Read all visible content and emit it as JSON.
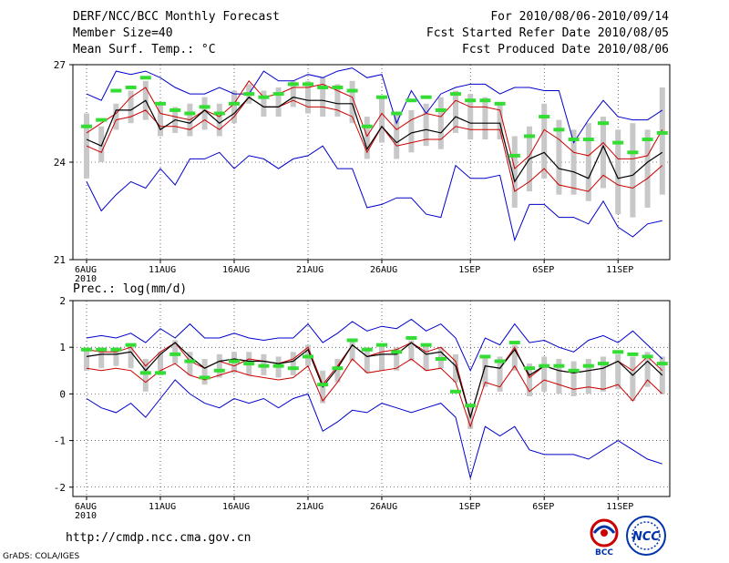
{
  "header": {
    "title": "DERF/NCC/BCC Monthly Forecast",
    "member_size": "Member Size=40",
    "variable": "Mean Surf. Temp.: °C",
    "period": "For 2010/08/06-2010/09/14",
    "started": "Fcst Started Refer Date 2010/08/05",
    "produced": "Fcst Produced Date 2010/08/06"
  },
  "footer": {
    "url": "http://cmdp.ncc.cma.gov.cn",
    "grads": "GrADS: COLA/IGES",
    "logo_bcc": "BCC",
    "logo_ncc": "NCC"
  },
  "colors": {
    "envelope": "#0000cc",
    "spread": "#cc0000",
    "mean": "#000000",
    "box": "#c8c8c8",
    "climatology": "#33dd33"
  },
  "chart_data": [
    {
      "type": "line",
      "title": "Mean Surf. Temp.: °C",
      "ylim": [
        21,
        27
      ],
      "yticks": [
        21,
        24,
        27
      ],
      "xtick_labels": [
        "6AUG",
        "11AUG",
        "16AUG",
        "21AUG",
        "26AUG",
        "1SEP",
        "6SEP",
        "11SEP"
      ],
      "xtick_sub": "2010",
      "xtick_index": [
        0,
        5,
        10,
        15,
        20,
        26,
        31,
        36
      ],
      "n_days": 40,
      "series": [
        {
          "name": "ensemble max",
          "values": [
            26.1,
            25.9,
            26.8,
            26.7,
            26.8,
            26.6,
            26.3,
            26.1,
            26.1,
            26.3,
            26.1,
            26.1,
            26.8,
            26.5,
            26.5,
            26.7,
            26.6,
            26.8,
            26.9,
            26.6,
            26.7,
            25.2,
            26.2,
            25.5,
            26.1,
            26.3,
            26.4,
            26.4,
            26.1,
            26.3,
            26.3,
            26.2,
            26.2,
            24.6,
            25.3,
            25.9,
            25.4,
            25.3,
            25.3,
            25.6
          ]
        },
        {
          "name": "ensemble upper",
          "values": [
            24.9,
            25.2,
            25.5,
            26.0,
            26.3,
            25.5,
            25.4,
            25.3,
            25.6,
            25.4,
            25.8,
            26.5,
            26.0,
            26.1,
            26.3,
            26.3,
            26.4,
            26.2,
            26.0,
            24.8,
            25.5,
            25.0,
            25.3,
            25.5,
            25.4,
            25.9,
            25.7,
            25.7,
            25.6,
            23.8,
            24.2,
            25.0,
            24.7,
            24.3,
            24.2,
            24.6,
            24.1,
            24.1,
            24.2,
            25.0
          ]
        },
        {
          "name": "ensemble mean",
          "values": [
            24.7,
            24.5,
            25.6,
            25.6,
            25.9,
            25.0,
            25.3,
            25.2,
            25.6,
            25.2,
            25.5,
            26.0,
            25.7,
            25.7,
            26.0,
            25.9,
            25.9,
            25.8,
            25.8,
            24.4,
            25.1,
            24.6,
            24.9,
            25.0,
            24.9,
            25.4,
            25.2,
            25.2,
            25.2,
            23.4,
            24.1,
            24.3,
            23.8,
            23.7,
            23.5,
            24.5,
            23.5,
            23.6,
            24.0,
            24.3
          ]
        },
        {
          "name": "ensemble lower",
          "values": [
            24.5,
            24.3,
            25.3,
            25.4,
            25.6,
            25.1,
            25.1,
            25.0,
            25.3,
            25.0,
            25.4,
            26.0,
            25.7,
            25.7,
            25.9,
            25.7,
            25.7,
            25.6,
            25.4,
            24.3,
            25.1,
            24.5,
            24.6,
            24.7,
            24.7,
            25.1,
            25.0,
            25.0,
            25.0,
            23.1,
            23.4,
            23.8,
            23.3,
            23.2,
            23.1,
            23.6,
            23.3,
            23.2,
            23.5,
            23.9
          ]
        },
        {
          "name": "ensemble min",
          "values": [
            23.4,
            22.5,
            23.0,
            23.4,
            23.2,
            23.8,
            23.3,
            24.1,
            24.1,
            24.3,
            23.8,
            24.2,
            24.1,
            23.8,
            24.1,
            24.2,
            24.5,
            23.8,
            23.8,
            22.6,
            22.7,
            22.9,
            22.9,
            22.4,
            22.3,
            23.9,
            23.5,
            23.5,
            23.6,
            21.6,
            22.7,
            22.7,
            22.3,
            22.3,
            22.1,
            22.8,
            22.0,
            21.7,
            22.1,
            22.2
          ]
        },
        {
          "name": "climatology",
          "values": [
            25.1,
            25.3,
            26.2,
            26.3,
            26.6,
            25.8,
            25.6,
            25.5,
            25.7,
            25.5,
            25.8,
            26.1,
            26.0,
            26.1,
            26.4,
            26.4,
            26.3,
            26.3,
            26.2,
            25.1,
            26.0,
            25.5,
            25.9,
            26.0,
            25.6,
            26.1,
            25.9,
            25.9,
            25.8,
            24.2,
            24.8,
            25.4,
            25.0,
            24.7,
            24.7,
            25.2,
            24.6,
            24.3,
            24.7,
            24.9
          ]
        },
        {
          "name": "box top",
          "values": [
            25.5,
            25.1,
            25.8,
            26.2,
            26.5,
            25.8,
            25.7,
            25.8,
            26.0,
            25.8,
            26.2,
            26.4,
            26.2,
            26.3,
            26.5,
            26.5,
            26.6,
            26.4,
            26.5,
            25.4,
            26.0,
            25.5,
            25.6,
            25.8,
            26.0,
            26.2,
            26.1,
            26.0,
            25.8,
            24.8,
            25.1,
            25.8,
            25.3,
            25.0,
            25.2,
            25.4,
            25.0,
            25.2,
            25.0,
            26.3
          ]
        },
        {
          "name": "box bottom",
          "values": [
            23.5,
            24.0,
            25.0,
            25.2,
            25.3,
            24.8,
            24.9,
            24.8,
            25.0,
            24.8,
            25.2,
            25.8,
            25.4,
            25.4,
            25.7,
            25.5,
            25.4,
            25.4,
            25.2,
            24.1,
            24.6,
            24.1,
            24.3,
            24.5,
            24.4,
            24.9,
            24.7,
            24.7,
            24.7,
            22.6,
            23.1,
            23.5,
            23.0,
            23.0,
            22.8,
            23.2,
            22.4,
            22.3,
            22.6,
            23.0
          ]
        }
      ]
    },
    {
      "type": "line",
      "title": "Prec.: log(mm/d)",
      "ylim": [
        -2.2,
        2.0
      ],
      "yticks": [
        -2,
        -1,
        0,
        1,
        2
      ],
      "xtick_labels": [
        "6AUG",
        "11AUG",
        "16AUG",
        "21AUG",
        "26AUG",
        "1SEP",
        "6SEP",
        "11SEP"
      ],
      "xtick_sub": "2010",
      "xtick_index": [
        0,
        5,
        10,
        15,
        20,
        26,
        31,
        36
      ],
      "n_days": 40,
      "series": [
        {
          "name": "ensemble max",
          "values": [
            1.2,
            1.25,
            1.2,
            1.3,
            1.1,
            1.4,
            1.2,
            1.5,
            1.2,
            1.2,
            1.3,
            1.2,
            1.15,
            1.2,
            1.2,
            1.5,
            1.1,
            1.3,
            1.55,
            1.35,
            1.45,
            1.4,
            1.6,
            1.35,
            1.5,
            1.2,
            0.5,
            1.2,
            1.05,
            1.5,
            1.1,
            1.15,
            1.0,
            0.9,
            1.15,
            1.25,
            1.1,
            1.35,
            1.05,
            0.75
          ]
        },
        {
          "name": "ensemble upper",
          "values": [
            0.95,
            0.9,
            0.9,
            1.0,
            0.6,
            0.9,
            1.1,
            0.7,
            0.55,
            0.7,
            0.6,
            0.75,
            0.7,
            0.65,
            0.75,
            1.0,
            0.2,
            0.6,
            1.05,
            0.8,
            0.9,
            0.95,
            1.1,
            0.9,
            1.0,
            0.7,
            -0.5,
            0.6,
            0.55,
            1.0,
            0.35,
            0.6,
            0.5,
            0.45,
            0.5,
            0.55,
            0.7,
            0.5,
            0.8,
            0.5
          ]
        },
        {
          "name": "ensemble mean",
          "values": [
            0.8,
            0.85,
            0.85,
            0.9,
            0.5,
            0.85,
            1.1,
            0.8,
            0.55,
            0.7,
            0.75,
            0.7,
            0.7,
            0.65,
            0.7,
            0.95,
            0.15,
            0.55,
            1.05,
            0.8,
            0.85,
            0.85,
            1.1,
            0.85,
            0.9,
            0.6,
            -0.5,
            0.6,
            0.55,
            0.95,
            0.4,
            0.6,
            0.5,
            0.45,
            0.5,
            0.55,
            0.7,
            0.4,
            0.7,
            0.4
          ]
        },
        {
          "name": "ensemble lower",
          "values": [
            0.55,
            0.5,
            0.55,
            0.5,
            0.25,
            0.5,
            0.65,
            0.4,
            0.3,
            0.4,
            0.5,
            0.4,
            0.35,
            0.3,
            0.35,
            0.6,
            -0.15,
            0.25,
            0.75,
            0.45,
            0.5,
            0.55,
            0.75,
            0.5,
            0.55,
            0.25,
            -0.7,
            0.25,
            0.15,
            0.6,
            0.05,
            0.3,
            0.2,
            0.1,
            0.15,
            0.1,
            0.2,
            -0.15,
            0.3,
            0.0
          ]
        },
        {
          "name": "ensemble min",
          "values": [
            -0.1,
            -0.3,
            -0.4,
            -0.2,
            -0.5,
            -0.1,
            0.3,
            0.0,
            -0.2,
            -0.3,
            -0.1,
            -0.2,
            -0.1,
            -0.3,
            -0.1,
            0.0,
            -0.8,
            -0.6,
            -0.35,
            -0.4,
            -0.2,
            -0.3,
            -0.4,
            -0.3,
            -0.2,
            -0.5,
            -1.8,
            -0.7,
            -0.9,
            -0.7,
            -1.2,
            -1.3,
            -1.3,
            -1.3,
            -1.4,
            -1.2,
            -1.0,
            -1.2,
            -1.4,
            -1.5
          ]
        },
        {
          "name": "climatology",
          "values": [
            0.95,
            0.95,
            0.95,
            1.05,
            0.45,
            0.45,
            0.85,
            0.7,
            0.35,
            0.5,
            0.7,
            0.65,
            0.6,
            0.6,
            0.55,
            0.8,
            0.2,
            0.55,
            1.15,
            0.95,
            1.05,
            0.9,
            1.2,
            1.05,
            0.75,
            0.05,
            -0.25,
            0.8,
            0.7,
            1.1,
            0.55,
            0.6,
            0.6,
            0.5,
            0.6,
            0.65,
            0.9,
            0.85,
            0.8,
            0.65
          ]
        },
        {
          "name": "box top",
          "values": [
            1.0,
            1.0,
            1.0,
            1.05,
            0.75,
            0.9,
            1.15,
            0.9,
            0.75,
            0.85,
            0.9,
            0.9,
            0.85,
            0.8,
            0.9,
            1.05,
            0.5,
            0.75,
            1.15,
            1.0,
            1.05,
            1.0,
            1.15,
            1.05,
            1.0,
            0.85,
            -0.25,
            0.8,
            0.8,
            1.05,
            0.65,
            0.8,
            0.75,
            0.7,
            0.75,
            0.8,
            0.85,
            0.8,
            0.9,
            0.8
          ]
        },
        {
          "name": "box bottom",
          "values": [
            0.5,
            0.55,
            0.6,
            0.55,
            0.05,
            0.4,
            0.65,
            0.4,
            0.2,
            0.35,
            0.45,
            0.4,
            0.4,
            0.35,
            0.4,
            0.6,
            -0.2,
            0.25,
            0.7,
            0.45,
            0.5,
            0.5,
            0.7,
            0.5,
            0.55,
            0.25,
            -0.75,
            0.15,
            0.05,
            0.5,
            -0.05,
            0.05,
            0.0,
            -0.05,
            0.0,
            0.05,
            0.1,
            -0.15,
            0.15,
            0.0
          ]
        }
      ]
    }
  ]
}
